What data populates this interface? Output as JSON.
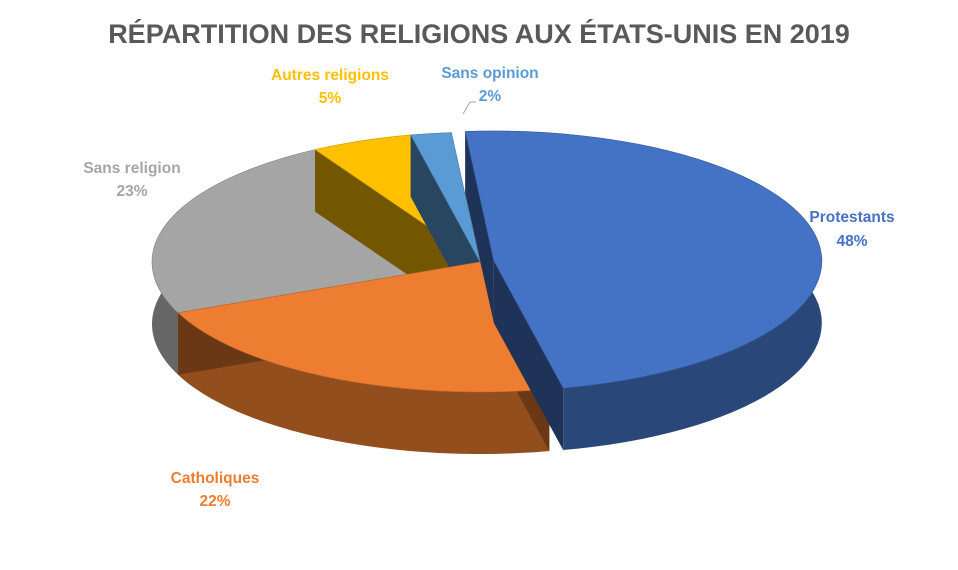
{
  "chart_data": {
    "type": "pie",
    "title": "RÉPARTITION DES RELIGIONS AUX ÉTATS-UNIS EN 2019",
    "categories": [
      "Protestants",
      "Catholiques",
      "Sans religion",
      "Autres religions",
      "Sans opinion"
    ],
    "values": [
      48,
      22,
      23,
      5,
      2
    ],
    "value_labels": [
      "48%",
      "22%",
      "23%",
      "5%",
      "2%"
    ],
    "colors": [
      "#4472C4",
      "#ED7D31",
      "#A5A5A5",
      "#FFC000",
      "#5B9BD5"
    ],
    "style": "3d-exploded",
    "legend": "none"
  }
}
